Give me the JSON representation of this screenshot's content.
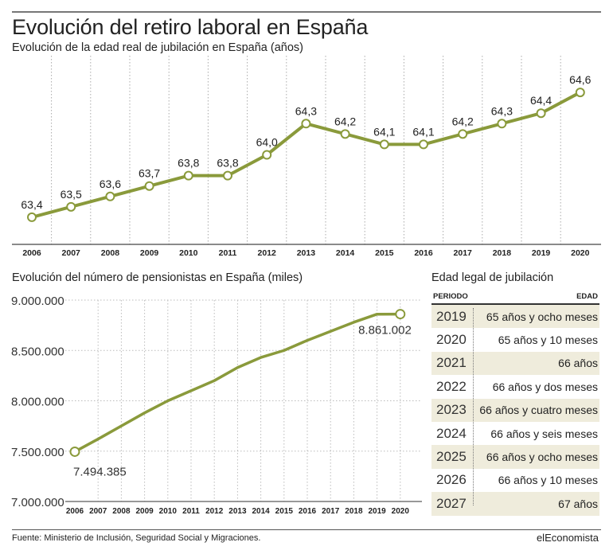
{
  "header": {
    "title": "Evolución del retiro laboral en España",
    "subtitle": "Evolución de la edad real de jubilación en España (años)"
  },
  "colors": {
    "line": "#8a9a3b",
    "marker_fill": "#ffffff",
    "table_shade": "#efecdc",
    "grid": "#bbbbbb"
  },
  "chart_data": [
    {
      "type": "line",
      "title": "Evolución de la edad real de jubilación en España (años)",
      "xlabel": "",
      "ylabel": "años",
      "x": [
        "2006",
        "2007",
        "2008",
        "2009",
        "2010",
        "2011",
        "2012",
        "2013",
        "2014",
        "2015",
        "2016",
        "2017",
        "2018",
        "2019",
        "2020"
      ],
      "values": [
        63.4,
        63.5,
        63.6,
        63.7,
        63.8,
        63.8,
        64.0,
        64.3,
        64.2,
        64.1,
        64.1,
        64.2,
        64.3,
        64.4,
        64.6
      ],
      "labels": [
        "63,4",
        "63,5",
        "63,6",
        "63,7",
        "63,8",
        "63,8",
        "64,0",
        "64,3",
        "64,2",
        "64,1",
        "64,1",
        "64,2",
        "64,3",
        "64,4",
        "64,6"
      ],
      "ylim": [
        63.3,
        64.7
      ],
      "grid": "vertical dotted",
      "markers": "open circles"
    },
    {
      "type": "line",
      "title": "Evolución del número de pensionistas en España (miles)",
      "xlabel": "",
      "ylabel": "",
      "x": [
        "2006",
        "2007",
        "2008",
        "2009",
        "2010",
        "2011",
        "2012",
        "2013",
        "2014",
        "2015",
        "2016",
        "2017",
        "2018",
        "2019",
        "2020"
      ],
      "values": [
        7494385,
        7620000,
        7750000,
        7880000,
        8000000,
        8100000,
        8200000,
        8330000,
        8430000,
        8500000,
        8600000,
        8690000,
        8780000,
        8860000,
        8861002
      ],
      "yticks": [
        7000000,
        7500000,
        8000000,
        8500000,
        9000000
      ],
      "ytick_labels": [
        "7.000.000",
        "7.500.000",
        "8.000.000",
        "8.500.000",
        "9.000.000"
      ],
      "ylim": [
        7000000,
        9000000
      ],
      "annotations": [
        {
          "x": "2006",
          "label": "7.494.385"
        },
        {
          "x": "2020",
          "label": "8.861.002"
        }
      ],
      "grid": "dotted both",
      "markers": "open circles at endpoints"
    }
  ],
  "pensioners": {
    "subtitle": "Evolución del número de pensionistas en España (miles)"
  },
  "table": {
    "title": "Edad legal de jubilación",
    "headers": {
      "periodo": "PERIODO",
      "edad": "EDAD"
    },
    "rows": [
      {
        "year": "2019",
        "age": "65 años y ocho meses"
      },
      {
        "year": "2020",
        "age": "65 años y 10 meses"
      },
      {
        "year": "2021",
        "age": "66 años"
      },
      {
        "year": "2022",
        "age": "66 años y dos meses"
      },
      {
        "year": "2023",
        "age": "66 años y cuatro meses"
      },
      {
        "year": "2024",
        "age": "66 años y seis meses"
      },
      {
        "year": "2025",
        "age": "66 años y ocho meses"
      },
      {
        "year": "2026",
        "age": "66 años y 10 meses"
      },
      {
        "year": "2027",
        "age": "67 años"
      }
    ]
  },
  "footer": {
    "source": "Fuente: Ministerio de Inclusión, Seguridad Social y Migraciones.",
    "brand": "elEconomista"
  }
}
